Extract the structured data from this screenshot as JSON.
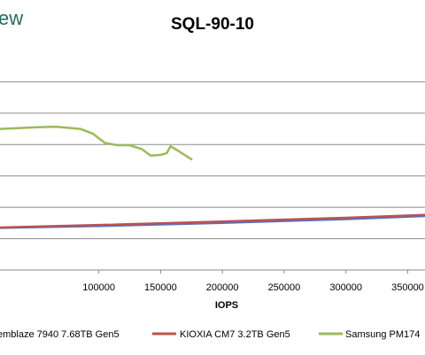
{
  "logo": {
    "text": "ew"
  },
  "chart_data": {
    "type": "line",
    "title": "SQL-90-10",
    "xlabel": "IOPS",
    "ylabel": "",
    "xlim": [
      20000,
      364000
    ],
    "ylim": [
      0,
      7
    ],
    "x_ticks": [
      100000,
      150000,
      200000,
      250000,
      300000,
      350000
    ],
    "x_tick_labels": [
      "100000",
      "150000",
      "200000",
      "250000",
      "300000",
      "350000"
    ],
    "grid": true,
    "legend_position": "bottom",
    "series": [
      {
        "name": "emblaze 7940 7.68TB Gen5",
        "color": "#5b6fb5",
        "x": [
          20000,
          100000,
          200000,
          300000,
          364000
        ],
        "y": [
          1.34,
          1.4,
          1.5,
          1.62,
          1.72
        ]
      },
      {
        "name": "KIOXIA CM7 3.2TB Gen5",
        "color": "#c0504d",
        "x": [
          20000,
          100000,
          200000,
          300000,
          364000
        ],
        "y": [
          1.36,
          1.44,
          1.55,
          1.67,
          1.76
        ]
      },
      {
        "name": "Samsung PM174",
        "color": "#9bbb59",
        "x": [
          20000,
          50000,
          65000,
          85000,
          95000,
          105000,
          115000,
          125000,
          135000,
          142000,
          150000,
          155000,
          158000,
          165000,
          175000
        ],
        "y": [
          4.5,
          4.55,
          4.57,
          4.5,
          4.35,
          4.05,
          3.98,
          3.98,
          3.85,
          3.65,
          3.67,
          3.73,
          3.95,
          3.78,
          3.53
        ]
      }
    ]
  }
}
